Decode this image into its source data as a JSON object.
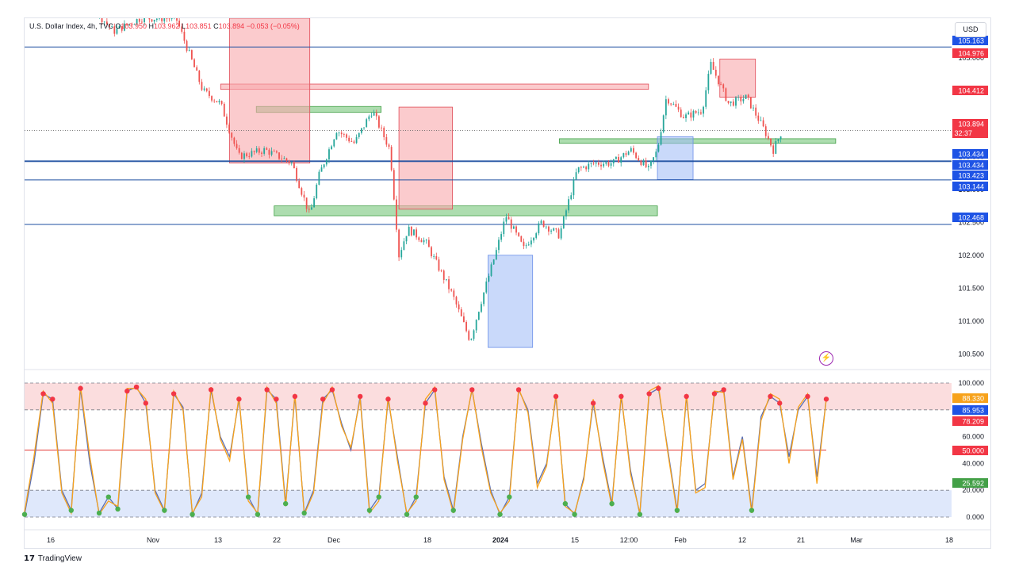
{
  "header": {
    "title": "U.S. Dollar Index, 4h, TVC",
    "open_label": "O",
    "open": "103.950",
    "high_label": "H",
    "high": "103.962",
    "low_label": "L",
    "low": "103.851",
    "close_label": "C",
    "close": "103.894",
    "change": "−0.053 (−0.05%)"
  },
  "currency_button": "USD",
  "footer_brand": "TradingView",
  "colors": {
    "up": "#26a69a",
    "down": "#ef5350",
    "hline": "#2962ff",
    "red_zone": "#f8a9ab",
    "green_zone": "#76c77a",
    "blue_zone": "#9db9f5",
    "stoch_k": "#5b6fb3",
    "stoch_d": "#f7a21b",
    "dot_red": "#f23645",
    "dot_green": "#4caf50"
  },
  "chart_data": [
    {
      "type": "candlestick",
      "title": "U.S. Dollar Index, 4h, TVC",
      "x_tick_labels": [
        "16",
        "Nov",
        "13",
        "22",
        "Dec",
        "18",
        "2024",
        "15",
        "12:00",
        "Feb",
        "12",
        "21",
        "Mar",
        "18"
      ],
      "y_ticks": [
        100.5,
        101.0,
        101.5,
        102.0,
        102.5,
        103.0,
        103.5,
        104.0,
        104.5,
        105.0
      ],
      "ylim": [
        100.3,
        105.6
      ],
      "horizontal_levels": [
        105.163,
        103.434,
        103.144,
        102.468
      ],
      "price_labels": [
        {
          "text": "105.163",
          "value": 105.163,
          "color": "#1e53e5"
        },
        {
          "text": "104.976",
          "value": 104.976,
          "color": "#f23645"
        },
        {
          "text": "104.412",
          "value": 104.412,
          "color": "#f23645"
        },
        {
          "text": "103.894",
          "value": 103.894,
          "color": "#f23645",
          "sub": "32:37"
        },
        {
          "text": "103.434",
          "value": 103.434,
          "color": "#1e53e5"
        },
        {
          "text": "103.434",
          "value": 103.434,
          "color": "#1e53e5"
        },
        {
          "text": "103.423",
          "value": 103.423,
          "color": "#1e53e5"
        },
        {
          "text": "103.144",
          "value": 103.144,
          "color": "#1e53e5"
        },
        {
          "text": "102.468",
          "value": 102.468,
          "color": "#1e53e5"
        }
      ],
      "current_price": 103.894,
      "price_path": [
        {
          "t": 0,
          "v": 106.2
        },
        {
          "t": 6,
          "v": 106.0
        },
        {
          "t": 10,
          "v": 105.4
        },
        {
          "t": 13,
          "v": 105.6
        },
        {
          "t": 17,
          "v": 105.6
        },
        {
          "t": 20,
          "v": 104.5
        },
        {
          "t": 22,
          "v": 104.3
        },
        {
          "t": 24,
          "v": 103.5
        },
        {
          "t": 27,
          "v": 103.6
        },
        {
          "t": 30,
          "v": 103.4
        },
        {
          "t": 32,
          "v": 102.6
        },
        {
          "t": 33,
          "v": 103.2
        },
        {
          "t": 35,
          "v": 103.9
        },
        {
          "t": 37,
          "v": 103.7
        },
        {
          "t": 39,
          "v": 104.2
        },
        {
          "t": 41,
          "v": 103.6
        },
        {
          "t": 42,
          "v": 102.0
        },
        {
          "t": 43,
          "v": 102.4
        },
        {
          "t": 45,
          "v": 102.2
        },
        {
          "t": 48,
          "v": 101.4
        },
        {
          "t": 50,
          "v": 100.7
        },
        {
          "t": 51,
          "v": 101.2
        },
        {
          "t": 53,
          "v": 102.1
        },
        {
          "t": 54,
          "v": 102.6
        },
        {
          "t": 56,
          "v": 102.1
        },
        {
          "t": 58,
          "v": 102.5
        },
        {
          "t": 60,
          "v": 102.3
        },
        {
          "t": 62,
          "v": 103.3
        },
        {
          "t": 64,
          "v": 103.4
        },
        {
          "t": 66,
          "v": 103.4
        },
        {
          "t": 68,
          "v": 103.6
        },
        {
          "t": 70,
          "v": 103.3
        },
        {
          "t": 71,
          "v": 103.6
        },
        {
          "t": 72,
          "v": 104.4
        },
        {
          "t": 74,
          "v": 104.1
        },
        {
          "t": 76,
          "v": 104.2
        },
        {
          "t": 77,
          "v": 104.9
        },
        {
          "t": 79,
          "v": 104.3
        },
        {
          "t": 81,
          "v": 104.4
        },
        {
          "t": 83,
          "v": 103.9
        },
        {
          "t": 84,
          "v": 103.6
        },
        {
          "t": 85,
          "v": 103.9
        }
      ],
      "zones": [
        {
          "color": "red",
          "t0": 22,
          "t1": 70,
          "v0": 104.52,
          "v1": 104.6
        },
        {
          "color": "green",
          "t0": 26,
          "t1": 40,
          "v0": 104.17,
          "v1": 104.26
        },
        {
          "color": "green",
          "t0": 28,
          "t1": 71,
          "v0": 102.6,
          "v1": 102.75
        },
        {
          "color": "green",
          "t0": 60,
          "t1": 91,
          "v0": 103.7,
          "v1": 103.77
        },
        {
          "color": "red",
          "t0": 42,
          "t1": 48,
          "v0": 102.7,
          "v1": 104.25
        },
        {
          "color": "red",
          "t0": 23,
          "t1": 32,
          "v0": 103.4,
          "v1": 105.6
        },
        {
          "color": "blue",
          "t0": 52,
          "t1": 57,
          "v0": 100.6,
          "v1": 102.0
        },
        {
          "color": "blue",
          "t0": 71,
          "t1": 75,
          "v0": 103.15,
          "v1": 103.8
        },
        {
          "color": "red",
          "t0": 78,
          "t1": 82,
          "v0": 104.4,
          "v1": 104.98
        }
      ]
    },
    {
      "type": "line",
      "title": "",
      "y_ticks": [
        0,
        20,
        40,
        60,
        80,
        100
      ],
      "y_tick_labels": [
        "0.000",
        "20.000",
        "40.000",
        "60.000",
        "80.000",
        "100.000"
      ],
      "ylim": [
        0,
        100
      ],
      "overbought": 80,
      "oversold": 20,
      "midline": 50,
      "value_labels": [
        {
          "text": "88.330",
          "value": 88.33,
          "color": "#f7a21b"
        },
        {
          "text": "85.953",
          "value": 85.953,
          "color": "#1e53e5"
        },
        {
          "text": "78.209",
          "value": 78.209,
          "color": "#f23645"
        },
        {
          "text": "50.000",
          "value": 50.0,
          "color": "#f23645"
        },
        {
          "text": "25.592",
          "value": 25.592,
          "color": "#43a047"
        }
      ],
      "series": [
        {
          "values": [
            2,
            40,
            92,
            88,
            20,
            5,
            96,
            40,
            3,
            15,
            6,
            94,
            97,
            85,
            20,
            5,
            92,
            82,
            2,
            18,
            95,
            60,
            45,
            88,
            15,
            2,
            95,
            88,
            10,
            90,
            3,
            20,
            88,
            95,
            70,
            50,
            90,
            5,
            15,
            88,
            45,
            2,
            15,
            85,
            95,
            30,
            5,
            60,
            95,
            55,
            20,
            2,
            15,
            95,
            80,
            25,
            40,
            90,
            10,
            2,
            30,
            85,
            45,
            10,
            90,
            35,
            2,
            92,
            96,
            50,
            5,
            90,
            20,
            25,
            92,
            95,
            30,
            60,
            5,
            75,
            90,
            85,
            45,
            80,
            90,
            30,
            88
          ]
        },
        {
          "values": [
            4,
            45,
            94,
            85,
            18,
            3,
            98,
            45,
            2,
            12,
            8,
            96,
            96,
            88,
            18,
            4,
            94,
            80,
            3,
            15,
            97,
            58,
            42,
            90,
            12,
            3,
            97,
            85,
            8,
            92,
            2,
            18,
            85,
            97,
            68,
            52,
            88,
            3,
            12,
            90,
            42,
            3,
            12,
            88,
            97,
            28,
            3,
            58,
            96,
            52,
            18,
            3,
            12,
            96,
            78,
            22,
            38,
            92,
            8,
            3,
            28,
            88,
            42,
            8,
            92,
            32,
            3,
            94,
            98,
            48,
            3,
            92,
            18,
            22,
            94,
            93,
            28,
            58,
            3,
            72,
            92,
            88,
            40,
            82,
            92,
            25,
            88
          ]
        }
      ]
    }
  ]
}
